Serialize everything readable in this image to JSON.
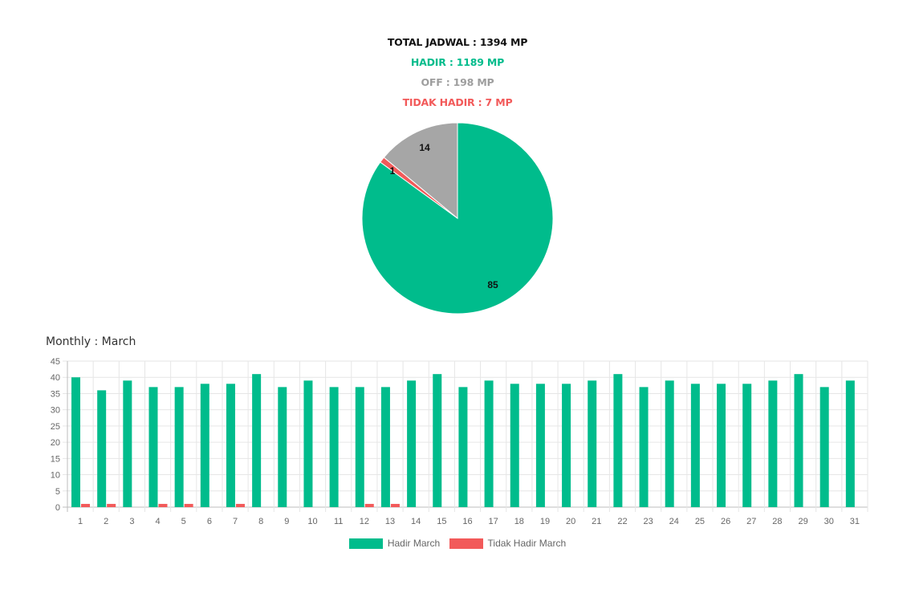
{
  "summary": {
    "total": {
      "text": "TOTAL JADWAL : 1394 MP",
      "color": "#111111"
    },
    "hadir": {
      "text": "HADIR : 1189 MP",
      "color": "#00bc8c"
    },
    "off": {
      "text": "OFF : 198 MP",
      "color": "#9e9e9e"
    },
    "tidak_hadir": {
      "text": "TIDAK HADIR : 7 MP",
      "color": "#f25a5a"
    }
  },
  "monthly_title": "Monthly : March",
  "chart_data": [
    {
      "type": "pie",
      "slices": [
        {
          "label": "85",
          "value": 85,
          "color": "#00bc8c"
        },
        {
          "label": "1",
          "value": 1,
          "color": "#f25a5a"
        },
        {
          "label": "14",
          "value": 14,
          "color": "#a6a6a6"
        }
      ]
    },
    {
      "type": "bar",
      "categories": [
        "1",
        "2",
        "3",
        "4",
        "5",
        "6",
        "7",
        "8",
        "9",
        "10",
        "11",
        "12",
        "13",
        "14",
        "15",
        "16",
        "17",
        "18",
        "19",
        "20",
        "21",
        "22",
        "23",
        "24",
        "25",
        "26",
        "27",
        "28",
        "29",
        "30",
        "31"
      ],
      "series": [
        {
          "name": "Hadir March",
          "color": "#00bc8c",
          "values": [
            40,
            36,
            39,
            37,
            37,
            38,
            38,
            41,
            37,
            39,
            37,
            37,
            37,
            39,
            41,
            37,
            39,
            38,
            38,
            38,
            39,
            41,
            37,
            39,
            38,
            38,
            38,
            39,
            41,
            37,
            39
          ]
        },
        {
          "name": "Tidak Hadir March",
          "color": "#f25a5a",
          "values": [
            1,
            1,
            0,
            1,
            1,
            0,
            1,
            0,
            0,
            0,
            0,
            1,
            1,
            0,
            0,
            0,
            0,
            0,
            0,
            0,
            0,
            0,
            0,
            0,
            0,
            0,
            0,
            0,
            0,
            0,
            0
          ]
        }
      ],
      "ylim": [
        0,
        45
      ],
      "yticks": [
        0,
        5,
        10,
        15,
        20,
        25,
        30,
        35,
        40,
        45
      ],
      "grid": true,
      "legend_position": "bottom"
    }
  ]
}
